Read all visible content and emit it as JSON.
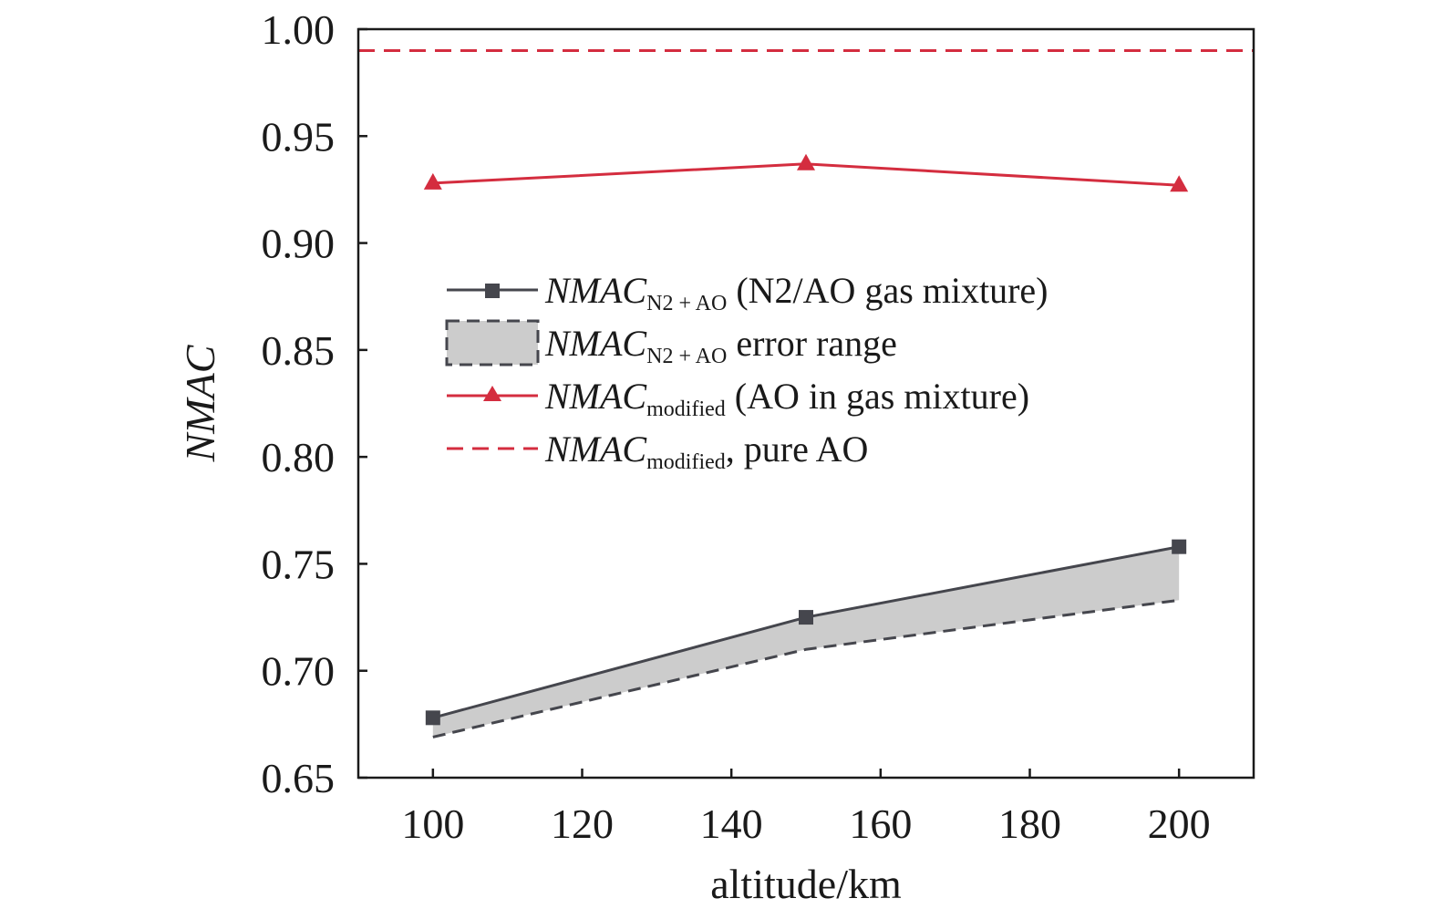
{
  "chart_data": {
    "type": "line",
    "xlabel": "altitude/km",
    "ylabel": "NMAC",
    "xlim": [
      90,
      210
    ],
    "ylim": [
      0.65,
      1.0
    ],
    "x_ticks": [
      "100",
      "120",
      "140",
      "160",
      "180",
      "200"
    ],
    "y_ticks": [
      "0.65",
      "0.70",
      "0.75",
      "0.80",
      "0.85",
      "0.90",
      "0.95",
      "1.00"
    ],
    "x": [
      100,
      150,
      200
    ],
    "series": [
      {
        "key": "n2ao",
        "legend_main": "NMAC",
        "legend_sub": "N2 + AO",
        "legend_tail": "(N2/AO gas mixture)",
        "values": [
          0.678,
          0.725,
          0.758
        ],
        "color": "#45464d",
        "marker": "square"
      },
      {
        "key": "n2ao_err",
        "legend_main": "NMAC",
        "legend_sub": "N2 + AO",
        "legend_tail": "error range",
        "lower": [
          0.669,
          0.71,
          0.733
        ],
        "upper": [
          0.678,
          0.725,
          0.758
        ],
        "color": "#cccccc",
        "edge_color": "#45464d"
      },
      {
        "key": "modified",
        "legend_main": "NMAC",
        "legend_sub": "modified",
        "legend_tail": "(AO in gas mixture)",
        "values": [
          0.928,
          0.937,
          0.927
        ],
        "color": "#d42d3f",
        "marker": "triangle"
      },
      {
        "key": "pure",
        "legend_main": "NMAC",
        "legend_sub": "modified",
        "legend_tail": ", pure AO",
        "value": 0.99,
        "color": "#d42d3f",
        "style": "dashed"
      }
    ],
    "grid": false,
    "legend_position": "center-left"
  }
}
